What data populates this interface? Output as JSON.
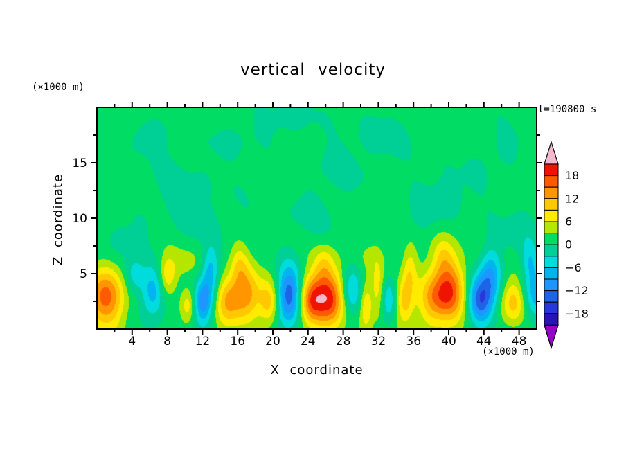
{
  "chart_data": {
    "type": "heatmap",
    "title": "vertical velocity",
    "xlabel": "X coordinate",
    "ylabel": "Z coordinate",
    "x_unit_label": "(×1000 m)",
    "y_unit_label": "(×1000 m)",
    "time_label": "t=190800 s",
    "x_range": [
      0,
      50
    ],
    "z_range": [
      0,
      20
    ],
    "x_ticks": [
      4,
      8,
      12,
      16,
      20,
      24,
      28,
      32,
      36,
      40,
      44,
      48
    ],
    "x_minor_ticks": [
      2,
      6,
      10,
      14,
      18,
      22,
      26,
      30,
      34,
      38,
      42,
      46
    ],
    "z_ticks": [
      5,
      10,
      15
    ],
    "z_minor_ticks": [
      2.5,
      7.5,
      12.5,
      17.5
    ],
    "contour_interval": 3,
    "level_min": -21,
    "level_max": 21,
    "colorbar_labels": [
      "18",
      "12",
      "6",
      "0",
      "−6",
      "−12",
      "−18"
    ],
    "colors_low_to_high": [
      "#9600c8",
      "#2814b4",
      "#2837dc",
      "#1e64e6",
      "#1e96ff",
      "#00b4f0",
      "#00dcdc",
      "#00cf96",
      "#00dc64",
      "#b4e600",
      "#ffeb00",
      "#ffc800",
      "#ff9600",
      "#ff5a00",
      "#f01400",
      "#f5b9cd"
    ],
    "field": {
      "base": 1.3,
      "blobs": [
        [
          1.0,
          2.9,
          1.5,
          1.9,
          15
        ],
        [
          4.3,
          4.8,
          0.8,
          1.2,
          -6
        ],
        [
          6.3,
          3.2,
          0.9,
          1.6,
          -9
        ],
        [
          8.0,
          4.8,
          0.7,
          1.2,
          8
        ],
        [
          10.4,
          2.2,
          0.6,
          1.1,
          7
        ],
        [
          10.0,
          6.0,
          1.4,
          1.1,
          2.2
        ],
        [
          12.1,
          2.4,
          0.8,
          1.4,
          -12
        ],
        [
          12.9,
          5.2,
          0.7,
          1.6,
          -9
        ],
        [
          14.8,
          2.5,
          1.0,
          1.5,
          10
        ],
        [
          16.9,
          3.0,
          1.2,
          1.8,
          12
        ],
        [
          16.2,
          5.9,
          0.7,
          1.2,
          5
        ],
        [
          19.6,
          2.4,
          0.8,
          1.4,
          9
        ],
        [
          21.8,
          3.0,
          1.0,
          1.9,
          -16
        ],
        [
          24.2,
          2.4,
          0.9,
          1.5,
          10
        ],
        [
          26.3,
          2.8,
          1.5,
          1.9,
          18
        ],
        [
          25.8,
          6.0,
          0.8,
          1.2,
          5
        ],
        [
          28.8,
          3.2,
          0.9,
          1.7,
          -10
        ],
        [
          30.6,
          2.2,
          0.5,
          1.6,
          8
        ],
        [
          31.9,
          3.6,
          0.5,
          1.8,
          6
        ],
        [
          31.0,
          6.5,
          1.5,
          1.0,
          2.0
        ],
        [
          33.2,
          2.6,
          0.6,
          1.4,
          -7
        ],
        [
          35.0,
          2.6,
          0.7,
          1.5,
          9
        ],
        [
          35.6,
          5.4,
          0.6,
          1.5,
          6
        ],
        [
          38.3,
          2.8,
          1.3,
          1.7,
          12
        ],
        [
          40.3,
          3.4,
          1.2,
          2.2,
          13
        ],
        [
          39.3,
          6.6,
          0.9,
          1.3,
          5
        ],
        [
          43.6,
          2.6,
          1.0,
          1.5,
          -15
        ],
        [
          44.8,
          5.0,
          0.9,
          1.8,
          -10
        ],
        [
          47.3,
          2.4,
          1.0,
          1.4,
          9
        ],
        [
          49.8,
          3.2,
          1.0,
          1.8,
          -9
        ],
        [
          49.2,
          6.2,
          0.6,
          1.2,
          -5
        ],
        [
          3.0,
          8.0,
          2.0,
          1.4,
          -2.6
        ],
        [
          9.0,
          12.4,
          2.4,
          1.8,
          -2.4
        ],
        [
          15.0,
          16.6,
          2.0,
          1.4,
          -2.3
        ],
        [
          21.0,
          18.8,
          2.2,
          1.2,
          -2.6
        ],
        [
          27.5,
          14.6,
          2.6,
          1.8,
          -2.4
        ],
        [
          33.0,
          17.6,
          2.0,
          1.4,
          -2.5
        ],
        [
          40.0,
          12.4,
          2.4,
          1.6,
          -2.3
        ],
        [
          46.0,
          16.2,
          1.8,
          1.4,
          -2.5
        ],
        [
          48.5,
          9.0,
          1.6,
          1.6,
          -2.6
        ],
        [
          12.0,
          9.6,
          2.0,
          1.4,
          -2.2
        ],
        [
          36.5,
          9.8,
          1.8,
          1.2,
          -2.2
        ],
        [
          6.5,
          17.5,
          1.8,
          1.2,
          -2.4
        ],
        [
          24.5,
          10.5,
          2.0,
          1.5,
          -2.2
        ]
      ],
      "waves": [
        [
          0.45,
          0.9,
          0.7,
          0.5
        ],
        [
          0.4,
          0.35,
          1.3,
          2.1
        ],
        [
          0.35,
          1.6,
          0.45,
          4.2
        ],
        [
          0.3,
          0.22,
          0.55,
          1.2
        ]
      ]
    }
  }
}
